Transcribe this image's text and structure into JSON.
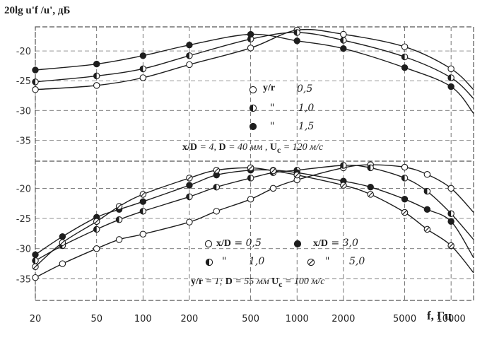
{
  "chart_data": {
    "type": "line",
    "x_axis": {
      "label": "f, Гц",
      "scale": "log",
      "ticks": [
        20,
        50,
        100,
        200,
        500,
        1000,
        2000,
        5000,
        10000
      ],
      "tick_labels": [
        "20",
        "50",
        "100",
        "200",
        "500",
        "1000",
        "2000",
        "5000",
        "10000"
      ],
      "range": [
        20,
        14000
      ]
    },
    "y_axis": {
      "label": "20lg u'f /u', дБ",
      "note": "two stacked panels share the x axis"
    },
    "panels": [
      {
        "name": "upper",
        "y_ticks": [
          "-20",
          "-25",
          "-30",
          "-35"
        ],
        "y_tick_values": [
          -20,
          -25,
          -30,
          -35
        ],
        "ylim": [
          -39,
          -15
        ],
        "legend_title": "y/r",
        "legend": [
          {
            "value": "0,5",
            "marker": "open"
          },
          {
            "value": "1,0",
            "marker": "half",
            "ditto": "\""
          },
          {
            "value": "1,5",
            "marker": "filled",
            "ditto": "\""
          }
        ],
        "annotation": [
          "x/D",
          " = 4, ",
          "D",
          " = 40 мм , ",
          "U",
          "c",
          " = 120 м/с"
        ],
        "series": [
          {
            "name": "y/r = 0,5",
            "marker": "open",
            "x": [
              20,
              50,
              100,
              200,
              500,
              1000,
              2000,
              5000,
              10000,
              14000
            ],
            "y": [
              -26.5,
              -25.8,
              -24.5,
              -22.3,
              -19.5,
              -16.5,
              -17.2,
              -19.3,
              -23.0,
              -26.5
            ]
          },
          {
            "name": "y/r = 1,0",
            "marker": "half",
            "x": [
              20,
              50,
              100,
              200,
              500,
              1000,
              2000,
              5000,
              10000,
              14000
            ],
            "y": [
              -25.2,
              -24.2,
              -23.0,
              -20.8,
              -18.0,
              -16.9,
              -18.2,
              -21.0,
              -24.5,
              -28.0
            ]
          },
          {
            "name": "y/r = 1,5",
            "marker": "filled",
            "x": [
              20,
              50,
              100,
              200,
              500,
              1000,
              2000,
              5000,
              10000,
              14000
            ],
            "y": [
              -23.2,
              -22.2,
              -20.8,
              -19.0,
              -17.2,
              -18.3,
              -19.6,
              -22.8,
              -26.0,
              -30.5
            ]
          }
        ]
      },
      {
        "name": "lower",
        "y_ticks": [
          "-20",
          "-25",
          "-30",
          "-35"
        ],
        "y_tick_values": [
          -20,
          -25,
          -30,
          -35
        ],
        "ylim": [
          -38,
          -15.5
        ],
        "legend": [
          {
            "label": "x/D",
            "value": "0,5",
            "marker": "open"
          },
          {
            "label": "x/D",
            "value": "3,0",
            "marker": "filled"
          },
          {
            "value": "1,0",
            "marker": "half",
            "ditto": "\""
          },
          {
            "value": "5,0",
            "marker": "slashed",
            "ditto": "\""
          }
        ],
        "annotation": [
          "y/r",
          " = 1; ",
          "D",
          " = 55 мм ",
          "U",
          "c",
          " = 100 м/с"
        ],
        "series": [
          {
            "name": "x/D = 0,5",
            "marker": "open",
            "x": [
              20,
              30,
              50,
              70,
              100,
              200,
              300,
              500,
              700,
              1000,
              2000,
              3000,
              5000,
              7000,
              10000,
              14000
            ],
            "y": [
              -34.8,
              -32.5,
              -30.0,
              -28.5,
              -27.6,
              -25.6,
              -23.8,
              -21.8,
              -20.0,
              -18.6,
              -16.6,
              -16.1,
              -16.5,
              -17.7,
              -20.0,
              -24.0
            ]
          },
          {
            "name": "x/D = 1,0",
            "marker": "half",
            "x": [
              20,
              30,
              50,
              70,
              100,
              200,
              300,
              500,
              700,
              1000,
              2000,
              3000,
              5000,
              7000,
              10000,
              14000
            ],
            "y": [
              -32.0,
              -29.5,
              -26.8,
              -25.2,
              -23.8,
              -21.4,
              -19.8,
              -18.3,
              -17.4,
              -17.0,
              -16.2,
              -16.6,
              -18.3,
              -20.5,
              -24.2,
              -28.5
            ]
          },
          {
            "name": "x/D = 3,0",
            "marker": "filled",
            "x": [
              20,
              30,
              50,
              70,
              100,
              200,
              300,
              500,
              700,
              1000,
              2000,
              3000,
              5000,
              7000,
              10000,
              14000
            ],
            "y": [
              -31.0,
              -28.0,
              -24.8,
              -23.5,
              -22.2,
              -19.5,
              -17.8,
              -17.0,
              -17.0,
              -17.4,
              -18.8,
              -19.8,
              -21.8,
              -23.5,
              -25.5,
              -31.5
            ]
          },
          {
            "name": "x/D = 5,0",
            "marker": "slashed",
            "x": [
              20,
              30,
              50,
              70,
              100,
              200,
              300,
              500,
              700,
              1000,
              2000,
              3000,
              5000,
              7000,
              10000,
              14000
            ],
            "y": [
              -33.0,
              -29.0,
              -25.5,
              -23.0,
              -21.0,
              -18.3,
              -17.0,
              -16.6,
              -17.1,
              -17.8,
              -19.5,
              -21.0,
              -24.0,
              -26.8,
              -29.5,
              -34.0
            ]
          }
        ]
      }
    ]
  },
  "colors": {
    "ink": "#1e1e1e",
    "grid": "#555555",
    "paper": "#ffffff"
  }
}
